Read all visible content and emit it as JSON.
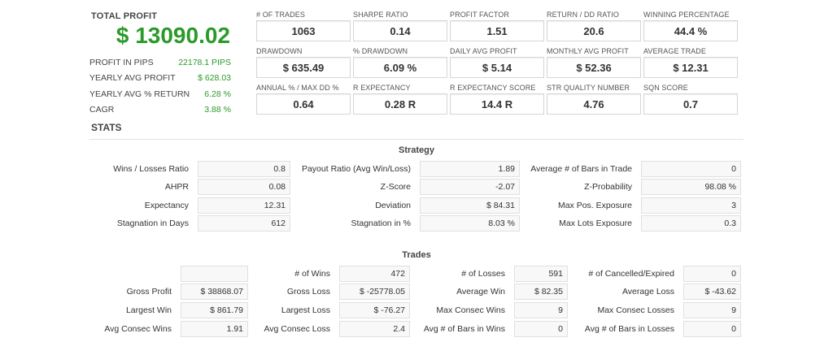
{
  "summary": {
    "total_profit_label": "TOTAL PROFIT",
    "total_profit_value": "$ 13090.02",
    "items": [
      {
        "label": "PROFIT IN PIPS",
        "value": "22178.1 PIPS"
      },
      {
        "label": "YEARLY AVG PROFIT",
        "value": "$ 628.03"
      },
      {
        "label": "YEARLY AVG % RETURN",
        "value": "6.28 %"
      },
      {
        "label": "CAGR",
        "value": "3.88 %"
      }
    ]
  },
  "metrics": [
    {
      "label": "# OF TRADES",
      "value": "1063"
    },
    {
      "label": "SHARPE RATIO",
      "value": "0.14"
    },
    {
      "label": "PROFIT FACTOR",
      "value": "1.51"
    },
    {
      "label": "RETURN / DD RATIO",
      "value": "20.6"
    },
    {
      "label": "WINNING PERCENTAGE",
      "value": "44.4 %"
    },
    {
      "label": "DRAWDOWN",
      "value": "$ 635.49"
    },
    {
      "label": "% DRAWDOWN",
      "value": "6.09 %"
    },
    {
      "label": "DAILY AVG PROFIT",
      "value": "$ 5.14"
    },
    {
      "label": "MONTHLY AVG PROFIT",
      "value": "$ 52.36"
    },
    {
      "label": "AVERAGE TRADE",
      "value": "$ 12.31"
    },
    {
      "label": "ANNUAL % / MAX DD %",
      "value": "0.64"
    },
    {
      "label": "R EXPECTANCY",
      "value": "0.28 R"
    },
    {
      "label": "R EXPECTANCY SCORE",
      "value": "14.4 R"
    },
    {
      "label": "STR QUALITY NUMBER",
      "value": "4.76"
    },
    {
      "label": "SQN SCORE",
      "value": "0.7"
    }
  ],
  "stats_title": "STATS",
  "strategy": {
    "title": "Strategy",
    "rows": [
      [
        {
          "label": "Wins / Losses Ratio",
          "value": "0.8"
        },
        {
          "label": "Payout Ratio (Avg Win/Loss)",
          "value": "1.89"
        },
        {
          "label": "Average # of Bars in Trade",
          "value": "0"
        }
      ],
      [
        {
          "label": "AHPR",
          "value": "0.08"
        },
        {
          "label": "Z-Score",
          "value": "-2.07"
        },
        {
          "label": "Z-Probability",
          "value": "98.08 %"
        }
      ],
      [
        {
          "label": "Expectancy",
          "value": "12.31"
        },
        {
          "label": "Deviation",
          "value": "$ 84.31"
        },
        {
          "label": "Max Pos. Exposure",
          "value": "3"
        }
      ],
      [
        {
          "label": "Stagnation in Days",
          "value": "612"
        },
        {
          "label": "Stagnation in %",
          "value": "8.03 %"
        },
        {
          "label": "Max Lots Exposure",
          "value": "0.3"
        }
      ]
    ]
  },
  "trades": {
    "title": "Trades",
    "rows": [
      [
        {
          "label": "",
          "value": ""
        },
        {
          "label": "# of Wins",
          "value": "472"
        },
        {
          "label": "# of Losses",
          "value": "591"
        },
        {
          "label": "# of Cancelled/Expired",
          "value": "0"
        }
      ],
      [
        {
          "label": "Gross Profit",
          "value": "$ 38868.07"
        },
        {
          "label": "Gross Loss",
          "value": "$ -25778.05"
        },
        {
          "label": "Average Win",
          "value": "$ 82.35"
        },
        {
          "label": "Average Loss",
          "value": "$ -43.62"
        }
      ],
      [
        {
          "label": "Largest Win",
          "value": "$ 861.79"
        },
        {
          "label": "Largest Loss",
          "value": "$ -76.27"
        },
        {
          "label": "Max Consec Wins",
          "value": "9"
        },
        {
          "label": "Max Consec Losses",
          "value": "9"
        }
      ],
      [
        {
          "label": "Avg Consec Wins",
          "value": "1.91"
        },
        {
          "label": "Avg Consec Loss",
          "value": "2.4"
        },
        {
          "label": "Avg # of Bars in Wins",
          "value": "0"
        },
        {
          "label": "Avg # of Bars in Losses",
          "value": "0"
        }
      ]
    ]
  }
}
